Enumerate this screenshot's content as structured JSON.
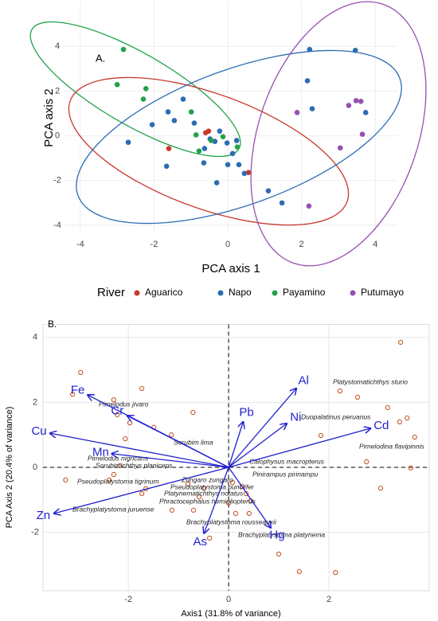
{
  "chart_data": [
    {
      "type": "scatter",
      "title": "A.",
      "xlabel": "PCA axis 1",
      "ylabel": "PCA axis 2",
      "xlim": [
        -4.45,
        4.6
      ],
      "ylim": [
        -4.3,
        6.0
      ],
      "xticks": [
        -4,
        -2,
        0,
        2,
        4
      ],
      "yticks": [
        -4,
        -2,
        0,
        2,
        4
      ],
      "grid": true,
      "legend_title": "River",
      "legend": "bottom",
      "series": [
        {
          "name": "Aguarico",
          "color": "#c93a2c",
          "x": [
            -1.6,
            -0.52,
            0.56,
            -0.6
          ],
          "y": [
            -0.57,
            0.21,
            -1.64,
            0.14
          ]
        },
        {
          "name": "Napo",
          "color": "#2b6cb3",
          "x": [
            -2.7,
            -1.66,
            -2.05,
            -1.45,
            -1.21,
            -1.62,
            -0.91,
            -0.65,
            -0.63,
            -0.35,
            -0.22,
            -0.02,
            0.13,
            0.0,
            0.3,
            -0.3,
            0.24,
            1.1,
            1.47,
            2.22,
            2.16,
            2.29,
            3.46,
            3.74,
            0.45,
            -0.48
          ],
          "y": [
            -0.29,
            -1.36,
            0.5,
            0.68,
            1.64,
            1.07,
            0.57,
            -1.21,
            -0.57,
            -0.25,
            0.21,
            -0.32,
            -0.79,
            -1.29,
            -1.29,
            -2.1,
            -0.21,
            -2.46,
            -3.0,
            3.86,
            2.46,
            1.21,
            3.82,
            1.04,
            -1.68,
            -0.14
          ]
        },
        {
          "name": "Payamino",
          "color": "#22a24b",
          "x": [
            -2.83,
            -3.0,
            -2.22,
            -2.29,
            -0.99,
            -0.86,
            -0.45,
            -0.78,
            -0.13,
            0.26
          ],
          "y": [
            3.86,
            2.29,
            2.11,
            1.64,
            1.07,
            0.04,
            -0.21,
            -0.68,
            -0.04,
            -0.5
          ]
        },
        {
          "name": "Putumayo",
          "color": "#9650b3",
          "x": [
            1.88,
            3.28,
            3.48,
            3.61,
            3.65,
            3.05,
            2.2
          ],
          "y": [
            1.04,
            1.36,
            1.57,
            1.54,
            0.07,
            -0.54,
            -3.14
          ]
        }
      ]
    },
    {
      "type": "biplot",
      "title": "B.",
      "xlabel": "Axis1 (31.8% of variance)",
      "ylabel": "PCA Axis 2 (20.4% of variance)",
      "xlim": [
        -3.7,
        4.0
      ],
      "ylim": [
        -3.8,
        4.4
      ],
      "xticks": [
        -2,
        0,
        2
      ],
      "yticks": [
        -2,
        0,
        2,
        4
      ],
      "grid": true,
      "point_color": "#c8582a",
      "arrow_color": "#1f1fd0",
      "points": {
        "x": [
          -2.95,
          -3.11,
          -2.29,
          -1.73,
          -2.22,
          -1.97,
          -2.06,
          -1.49,
          -1.14,
          -0.71,
          -3.25,
          -2.38,
          -2.17,
          -1.65,
          -1.73,
          -2.29,
          -0.7,
          -1.13,
          -0.38,
          0.08,
          0.27,
          0.35,
          0.0,
          0.14,
          0.41,
          0.44,
          -0.49,
          -0.81,
          -0.59,
          1.0,
          1.41,
          2.13,
          3.43,
          2.22,
          2.57,
          3.17,
          3.41,
          3.56,
          3.71,
          3.63,
          3.03,
          1.84,
          2.75
        ],
        "y": [
          2.92,
          2.25,
          2.08,
          2.43,
          1.62,
          1.37,
          0.88,
          1.23,
          1.0,
          1.69,
          -0.39,
          -0.39,
          0.05,
          -0.66,
          -0.81,
          -0.22,
          -1.32,
          -1.32,
          -2.18,
          -0.47,
          -0.59,
          -0.81,
          -1.1,
          -1.42,
          -1.42,
          -1.03,
          -0.64,
          -0.51,
          -0.91,
          -2.67,
          -3.21,
          -3.24,
          3.85,
          2.35,
          2.16,
          1.84,
          1.4,
          1.52,
          0.93,
          -0.02,
          -0.64,
          0.98,
          0.17
        ]
      },
      "loadings": [
        {
          "name": "Fe",
          "x": -2.81,
          "y": 2.23
        },
        {
          "name": "Cr",
          "x": -2.02,
          "y": 1.59
        },
        {
          "name": "Cu",
          "x": -3.56,
          "y": 1.05
        },
        {
          "name": "Mn",
          "x": -2.33,
          "y": 0.42
        },
        {
          "name": "Zn",
          "x": -3.48,
          "y": -1.42
        },
        {
          "name": "As",
          "x": -0.49,
          "y": -2.03
        },
        {
          "name": "Hg",
          "x": 0.84,
          "y": -1.86
        },
        {
          "name": "Pb",
          "x": 0.29,
          "y": 1.4
        },
        {
          "name": "Al",
          "x": 1.35,
          "y": 2.43
        },
        {
          "name": "Ni",
          "x": 1.16,
          "y": 1.35
        },
        {
          "name": "Cd",
          "x": 2.83,
          "y": 1.2
        }
      ],
      "annotations": [
        "Platystomatichthys sturio",
        "Pimelodus jivaro",
        "Duopalatinus peruanus",
        "Sorubim lima",
        "Pimelodina flavipinnis",
        "Calophysus macropterus",
        "Pimelodus nigricans",
        "Sorubimichthys planiceps",
        "Pinirampus pirinampu",
        "Pseudoplatystoma tigrinum",
        "Zungaro zungaro",
        "Pseudoplatystoma punctifer",
        "Platynematichthys notatus",
        "Phractocephalus hemioliopterus",
        "Brachyplatystoma juruense",
        "Brachyplatystoma rousseauxii",
        "Brachyplatystoma platynema"
      ]
    }
  ]
}
